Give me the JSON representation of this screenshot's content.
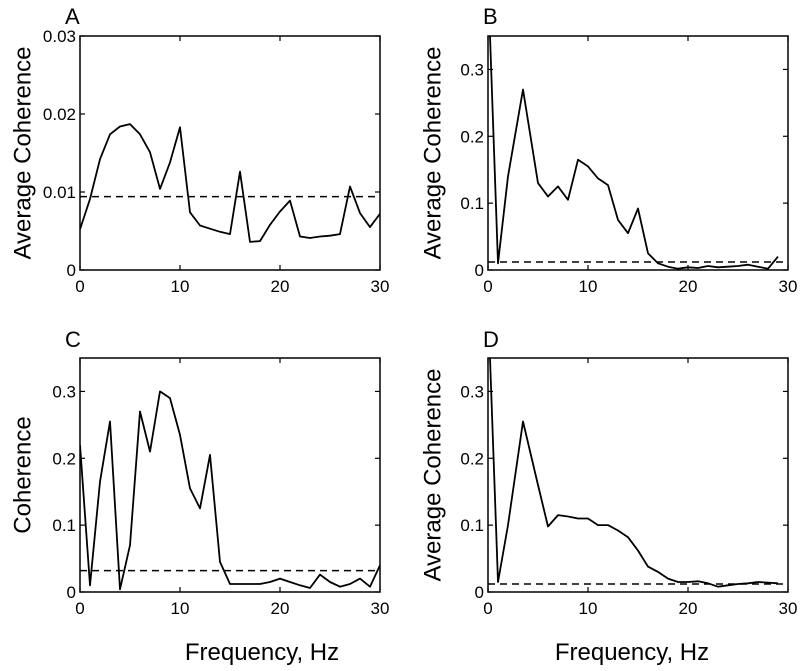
{
  "x_axis_label": "Frequency, Hz",
  "chart_data": [
    {
      "type": "line",
      "panel_label": "A",
      "ylabel": "Average Coherence",
      "xlabel": "",
      "xlim": [
        0,
        30
      ],
      "ylim": [
        0,
        0.03
      ],
      "xticks": [
        0,
        10,
        20,
        30
      ],
      "yticks": [
        0,
        0.01,
        0.02,
        0.03
      ],
      "yticklabels": [
        "0",
        "0.01",
        "0.02",
        "0.03"
      ],
      "x": [
        0,
        1,
        2,
        3,
        4,
        5,
        6,
        7,
        8,
        9,
        10,
        11,
        12,
        13,
        14,
        15,
        16,
        17,
        18,
        19,
        20,
        21,
        22,
        23,
        24,
        25,
        26,
        27,
        28,
        29,
        30
      ],
      "values": [
        0.0052,
        0.0091,
        0.0142,
        0.0174,
        0.0184,
        0.0187,
        0.0174,
        0.0151,
        0.0104,
        0.0138,
        0.0183,
        0.0074,
        0.0057,
        0.0053,
        0.0049,
        0.0046,
        0.0126,
        0.0036,
        0.0037,
        0.0058,
        0.0075,
        0.0089,
        0.0043,
        0.0041,
        0.0043,
        0.0044,
        0.0046,
        0.0107,
        0.0073,
        0.0055,
        0.0072
      ],
      "threshold": 0.0094
    },
    {
      "type": "line",
      "panel_label": "B",
      "ylabel": "Average Coherence",
      "xlabel": "",
      "xlim": [
        0,
        30
      ],
      "ylim": [
        0,
        0.35
      ],
      "xticks": [
        0,
        10,
        20,
        30
      ],
      "yticks": [
        0,
        0.1,
        0.2,
        0.3
      ],
      "yticklabels": [
        "0",
        "0.1",
        "0.2",
        "0.3"
      ],
      "x": [
        0.2,
        1,
        2,
        3.5,
        5,
        6,
        7,
        8,
        9,
        10,
        11,
        12,
        13,
        14,
        15,
        16,
        17,
        18,
        19,
        20,
        21,
        22,
        23,
        24,
        25,
        26,
        27,
        28,
        29
      ],
      "values": [
        0.35,
        0.01,
        0.14,
        0.27,
        0.13,
        0.11,
        0.125,
        0.105,
        0.165,
        0.155,
        0.137,
        0.127,
        0.075,
        0.055,
        0.092,
        0.025,
        0.01,
        0.005,
        0.002,
        0.004,
        0.003,
        0.006,
        0.004,
        0.005,
        0.006,
        0.008,
        0.005,
        0.002,
        0.02
      ],
      "threshold": 0.012
    },
    {
      "type": "line",
      "panel_label": "C",
      "ylabel": "Coherence",
      "xlabel": "",
      "xlim": [
        0,
        30
      ],
      "ylim": [
        0,
        0.35
      ],
      "xticks": [
        0,
        10,
        20,
        30
      ],
      "yticks": [
        0,
        0.1,
        0.2,
        0.3
      ],
      "yticklabels": [
        "0",
        "0.1",
        "0.2",
        "0.3"
      ],
      "x": [
        0,
        1,
        2,
        3,
        4,
        5,
        6,
        7,
        8,
        9,
        10,
        11,
        12,
        13,
        14,
        15,
        16,
        17,
        18,
        19,
        20,
        21,
        22,
        23,
        24,
        25,
        26,
        27,
        28,
        29,
        30
      ],
      "values": [
        0.22,
        0.01,
        0.165,
        0.255,
        0.004,
        0.07,
        0.27,
        0.21,
        0.3,
        0.29,
        0.235,
        0.155,
        0.125,
        0.205,
        0.045,
        0.012,
        0.012,
        0.012,
        0.012,
        0.015,
        0.02,
        0.015,
        0.01,
        0.006,
        0.026,
        0.015,
        0.008,
        0.012,
        0.02,
        0.008,
        0.04
      ],
      "threshold": 0.032
    },
    {
      "type": "line",
      "panel_label": "D",
      "ylabel": "Average Coherence",
      "xlabel": "",
      "xlim": [
        0,
        30
      ],
      "ylim": [
        0,
        0.35
      ],
      "xticks": [
        0,
        10,
        20,
        30
      ],
      "yticks": [
        0,
        0.1,
        0.2,
        0.3
      ],
      "yticklabels": [
        "0",
        "0.1",
        "0.2",
        "0.3"
      ],
      "x": [
        0.2,
        1,
        2,
        3.5,
        5,
        6,
        7,
        8,
        9,
        10,
        11,
        12,
        13,
        14,
        15,
        16,
        17,
        18,
        19,
        20,
        21,
        22,
        23,
        24,
        25,
        26,
        27,
        28,
        29
      ],
      "values": [
        0.35,
        0.015,
        0.1,
        0.255,
        0.16,
        0.098,
        0.115,
        0.113,
        0.11,
        0.11,
        0.1,
        0.1,
        0.092,
        0.082,
        0.062,
        0.038,
        0.03,
        0.02,
        0.015,
        0.015,
        0.016,
        0.013,
        0.008,
        0.01,
        0.012,
        0.013,
        0.015,
        0.014,
        0.013
      ],
      "threshold": 0.012
    }
  ]
}
